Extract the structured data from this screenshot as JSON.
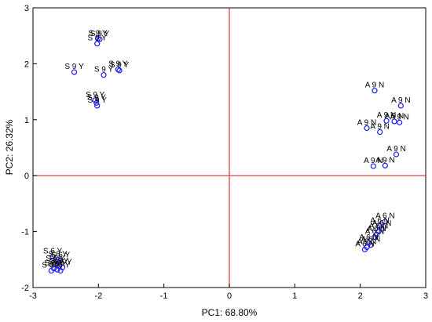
{
  "chart_data": {
    "type": "scatter",
    "title": "",
    "xlabel": "PC1: 68.80%",
    "ylabel": "PC2: 26.32%",
    "xlim": [
      -3,
      3
    ],
    "ylim": [
      -2,
      3
    ],
    "x_ticks": [
      "-3",
      "-2",
      "-1",
      "0",
      "1",
      "2",
      "3"
    ],
    "y_ticks": [
      "-2",
      "-1",
      "0",
      "1",
      "2",
      "3"
    ],
    "grid": false,
    "reference_lines": {
      "x": 0,
      "y": 0,
      "color": "#e03030"
    },
    "marker_color": "#1a1aff",
    "points": [
      {
        "x": -2.01,
        "y": 2.45,
        "label": "S 9 Y"
      },
      {
        "x": -1.98,
        "y": 2.44,
        "label": "S 9 Y"
      },
      {
        "x": -2.02,
        "y": 2.36,
        "label": "S 9 Y"
      },
      {
        "x": -1.7,
        "y": 1.9,
        "label": "S 9 Y"
      },
      {
        "x": -1.68,
        "y": 1.88,
        "label": "S 9 Y"
      },
      {
        "x": -2.37,
        "y": 1.85,
        "label": "S 9 Y"
      },
      {
        "x": -1.92,
        "y": 1.8,
        "label": "S 9 Y"
      },
      {
        "x": -2.05,
        "y": 1.35,
        "label": "S 9 Y"
      },
      {
        "x": -2.03,
        "y": 1.3,
        "label": "S 9 Y"
      },
      {
        "x": -2.02,
        "y": 1.25,
        "label": "S 9 Y"
      },
      {
        "x": 2.22,
        "y": 1.52,
        "label": "A 9 N"
      },
      {
        "x": 2.62,
        "y": 1.25,
        "label": "A 9 N"
      },
      {
        "x": 2.4,
        "y": 0.98,
        "label": "A 9 N"
      },
      {
        "x": 2.52,
        "y": 0.97,
        "label": "A 9 N"
      },
      {
        "x": 2.6,
        "y": 0.95,
        "label": "A 9 N"
      },
      {
        "x": 2.1,
        "y": 0.85,
        "label": "A 9 N"
      },
      {
        "x": 2.3,
        "y": 0.78,
        "label": "A 9 N"
      },
      {
        "x": 2.55,
        "y": 0.38,
        "label": "A 9 N"
      },
      {
        "x": 2.2,
        "y": 0.17,
        "label": "A 9 N"
      },
      {
        "x": 2.38,
        "y": 0.18,
        "label": "A 9 N"
      },
      {
        "x": 2.38,
        "y": -0.82,
        "label": "A 6 N"
      },
      {
        "x": 2.3,
        "y": -0.9,
        "label": "A 6 N"
      },
      {
        "x": 2.33,
        "y": -0.95,
        "label": "A 6 N"
      },
      {
        "x": 2.28,
        "y": -1.0,
        "label": "A 6 N"
      },
      {
        "x": 2.25,
        "y": -1.05,
        "label": "A 6 N"
      },
      {
        "x": 2.22,
        "y": -1.1,
        "label": "A 6 N"
      },
      {
        "x": 2.13,
        "y": -1.2,
        "label": "A 6 N"
      },
      {
        "x": 2.16,
        "y": -1.24,
        "label": "A 6 N"
      },
      {
        "x": 2.1,
        "y": -1.28,
        "label": "A 6 N"
      },
      {
        "x": 2.07,
        "y": -1.32,
        "label": "A 6 N"
      },
      {
        "x": -2.7,
        "y": -1.45,
        "label": "S 6 Y"
      },
      {
        "x": -2.62,
        "y": -1.5,
        "label": "S 6 Y"
      },
      {
        "x": -2.58,
        "y": -1.52,
        "label": "S 6 Y"
      },
      {
        "x": -2.66,
        "y": -1.58,
        "label": "S 6 Y"
      },
      {
        "x": -2.6,
        "y": -1.62,
        "label": "S 6 Y"
      },
      {
        "x": -2.55,
        "y": -1.64,
        "label": "S 6 Y"
      },
      {
        "x": -2.68,
        "y": -1.66,
        "label": "S 6 Y"
      },
      {
        "x": -2.63,
        "y": -1.68,
        "label": "S 6 Y"
      },
      {
        "x": -2.72,
        "y": -1.7,
        "label": "S 6 Y"
      },
      {
        "x": -2.58,
        "y": -1.7,
        "label": "S 6 Y"
      }
    ]
  }
}
